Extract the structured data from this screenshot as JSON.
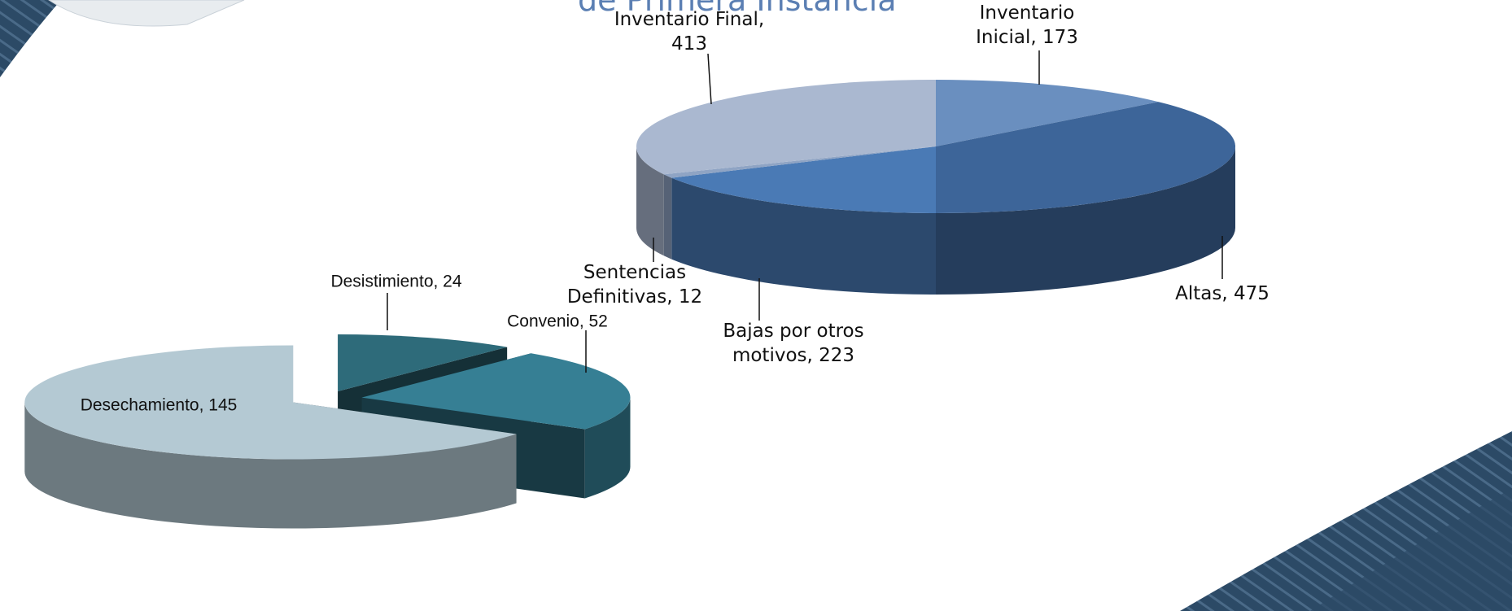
{
  "title": "de Primera Instancia",
  "chart_data": [
    {
      "type": "pie",
      "values": [
        173,
        475,
        223,
        12,
        413
      ],
      "value_labels": [
        "Inventario Inicial, 173",
        "Altas, 475",
        "Bajas por otros motivos, 223",
        "Sentencias Definitivas, 12",
        "Inventario Final, 413"
      ],
      "colors": [
        "#6a8fbf",
        "#3d6599",
        "#4a7ab5",
        "#8fa4c4",
        "#aab8d0"
      ]
    },
    {
      "type": "pie",
      "values": [
        24,
        52,
        145
      ],
      "value_labels": [
        "Desistimiento, 24",
        "Convenio, 52",
        "Desechamiento, 145"
      ],
      "colors": [
        "#2e6b7a",
        "#367f94",
        "#b4c9d3"
      ]
    }
  ]
}
